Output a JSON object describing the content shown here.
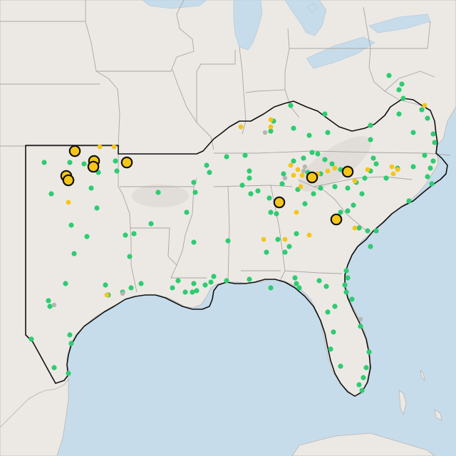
{
  "map": {
    "colors": {
      "water": "#c7dcea",
      "land": "#ece9e5",
      "state_border": "#a9a6a3",
      "region_outline": "#111111",
      "station_green": "#2ecc71",
      "station_yellow": "#f5c518",
      "station_gray": "#b5b5b5",
      "highlight_fill": "#f5c518",
      "highlight_stroke": "#111111"
    },
    "legend": null
  }
}
